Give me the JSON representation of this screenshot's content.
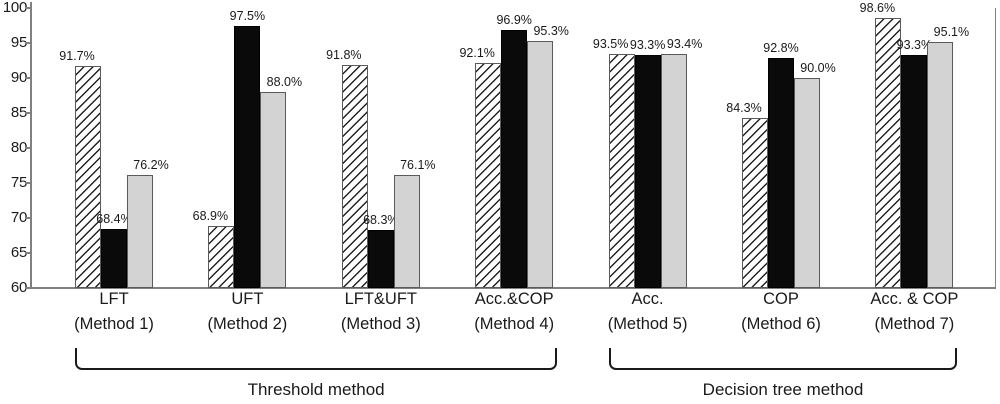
{
  "chart_data": {
    "type": "bar",
    "title": "",
    "xlabel": "",
    "ylabel": "",
    "ylim": [
      60,
      100
    ],
    "yticks": [
      100,
      95,
      90,
      85,
      80,
      75,
      70,
      65,
      60
    ],
    "grid": false,
    "legend": "none",
    "categories": [
      {
        "label": "LFT",
        "method": "(Method 1)"
      },
      {
        "label": "UFT",
        "method": "(Method 2)"
      },
      {
        "label": "LFT&UFT",
        "method": "(Method 3)"
      },
      {
        "label": "Acc.&COP",
        "method": "(Method 4)"
      },
      {
        "label": "Acc.",
        "method": "(Method 5)"
      },
      {
        "label": "COP",
        "method": "(Method 6)"
      },
      {
        "label": "Acc. & COP",
        "method": "(Method 7)"
      }
    ],
    "series": [
      {
        "style": "hatched",
        "values": [
          91.7,
          68.9,
          91.8,
          92.1,
          93.5,
          84.3,
          98.6
        ],
        "labels": [
          "91.7%",
          "68.9%",
          "91.8%",
          "92.1%",
          "93.5%",
          "84.3%",
          "98.6%"
        ]
      },
      {
        "style": "solid-black",
        "values": [
          68.4,
          97.5,
          68.3,
          96.9,
          93.3,
          92.8,
          93.3
        ],
        "labels": [
          "68.4%",
          "97.5%",
          "68.3%",
          "96.9%",
          "93.3%",
          "92.8%",
          "93.3%"
        ]
      },
      {
        "style": "solid-gray",
        "values": [
          76.2,
          88.0,
          76.1,
          95.3,
          93.4,
          90.0,
          95.1
        ],
        "labels": [
          "76.2%",
          "88.0%",
          "76.1%",
          "95.3%",
          "93.4%",
          "90.0%",
          "95.1%"
        ]
      }
    ],
    "brackets": [
      {
        "label": "Threshold method",
        "from_group": 0,
        "to_group": 3
      },
      {
        "label": "Decision tree method",
        "from_group": 4,
        "to_group": 6
      }
    ],
    "colors": {
      "bar_black": "#0a0a0a",
      "bar_gray": "#d3d3d3",
      "bar_border": "#5a5a5a",
      "hatch_line": "#222222",
      "axis": "#808080",
      "text": "#1a1a1a",
      "background": "#ffffff"
    }
  }
}
